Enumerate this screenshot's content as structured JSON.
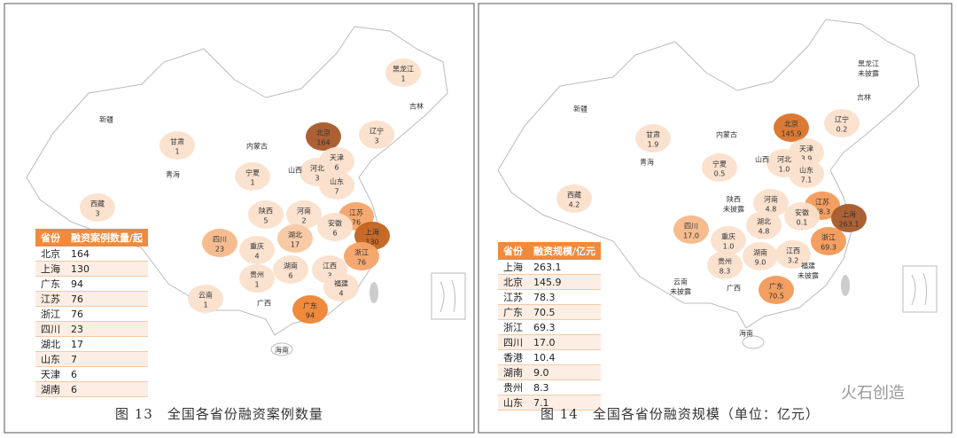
{
  "panels": [
    {
      "regions": [
        {
          "name": "黑龙江",
          "value": "1",
          "color": "#fbe0cc"
        },
        {
          "name": "吉林",
          "color": "#ffffff"
        },
        {
          "name": "辽宁",
          "value": "3",
          "color": "#fbe0cc"
        },
        {
          "name": "新疆",
          "color": "#ffffff"
        },
        {
          "name": "甘肃",
          "value": "1",
          "color": "#fbe0cc"
        },
        {
          "name": "内蒙古",
          "color": "#ffffff"
        },
        {
          "name": "北京",
          "value": "164",
          "color": "#a8582a"
        },
        {
          "name": "天津",
          "value": "6",
          "color": "#fbe0cc"
        },
        {
          "name": "河北",
          "value": "3",
          "color": "#fbe0cc"
        },
        {
          "name": "山西",
          "color": "#ffffff"
        },
        {
          "name": "宁夏",
          "value": "1",
          "color": "#fbe0cc"
        },
        {
          "name": "青海",
          "color": "#ffffff"
        },
        {
          "name": "山东",
          "value": "7",
          "color": "#fbe0cc"
        },
        {
          "name": "西藏",
          "value": "3",
          "color": "#fbe0cc"
        },
        {
          "name": "陕西",
          "value": "5",
          "color": "#fbe0cc"
        },
        {
          "name": "河南",
          "value": "2",
          "color": "#fbe0cc"
        },
        {
          "name": "江苏",
          "value": "76",
          "color": "#f4a468"
        },
        {
          "name": "安徽",
          "value": "6",
          "color": "#fbe0cc"
        },
        {
          "name": "上海",
          "value": "130",
          "color": "#c2621c"
        },
        {
          "name": "四川",
          "value": "23",
          "color": "#f6b88a"
        },
        {
          "name": "重庆",
          "value": "4",
          "color": "#fbe0cc"
        },
        {
          "name": "湖北",
          "value": "17",
          "color": "#f8c8a2"
        },
        {
          "name": "浙江",
          "value": "76",
          "color": "#f4a468"
        },
        {
          "name": "湖南",
          "value": "6",
          "color": "#fbe0cc"
        },
        {
          "name": "江西",
          "value": "3",
          "color": "#fbe0cc"
        },
        {
          "name": "贵州",
          "value": "1",
          "color": "#fbe0cc"
        },
        {
          "name": "福建",
          "value": "4",
          "color": "#fbe0cc"
        },
        {
          "name": "云南",
          "value": "1",
          "color": "#fbe0cc"
        },
        {
          "name": "广西",
          "color": "#ffffff"
        },
        {
          "name": "广东",
          "value": "94",
          "color": "#ef8432"
        },
        {
          "name": "海南",
          "color": "#ffffff"
        }
      ],
      "table": {
        "header": [
          "省份",
          "融资案例数量/起"
        ],
        "rows": [
          [
            "北京",
            "164"
          ],
          [
            "上海",
            "130"
          ],
          [
            "广东",
            "94"
          ],
          [
            "江苏",
            "76"
          ],
          [
            "浙江",
            "76"
          ],
          [
            "四川",
            "23"
          ],
          [
            "湖北",
            "17"
          ],
          [
            "山东",
            "7"
          ],
          [
            "天津",
            "6"
          ],
          [
            "湖南",
            "6"
          ]
        ]
      },
      "caption": "图 13　全国各省份融资案例数量"
    },
    {
      "regions": [
        {
          "name": "黑龙江",
          "value": "未披露",
          "color": "#ffffff"
        },
        {
          "name": "吉林",
          "color": "#ffffff"
        },
        {
          "name": "辽宁",
          "value": "0.2",
          "color": "#fbe0cc"
        },
        {
          "name": "新疆",
          "color": "#ffffff"
        },
        {
          "name": "甘肃",
          "value": "1.9",
          "color": "#fbe0cc"
        },
        {
          "name": "内蒙古",
          "color": "#ffffff"
        },
        {
          "name": "北京",
          "value": "145.9",
          "color": "#d9732a"
        },
        {
          "name": "天津",
          "value": "3.9",
          "color": "#fbe0cc"
        },
        {
          "name": "河北",
          "value": "1.0",
          "color": "#fbe0cc"
        },
        {
          "name": "山西",
          "color": "#ffffff"
        },
        {
          "name": "宁夏",
          "value": "0.5",
          "color": "#fbe0cc"
        },
        {
          "name": "青海",
          "color": "#ffffff"
        },
        {
          "name": "山东",
          "value": "7.1",
          "color": "#fbe0cc"
        },
        {
          "name": "西藏",
          "value": "4.2",
          "color": "#fbe0cc"
        },
        {
          "name": "陕西",
          "value": "未披露",
          "color": "#ffffff"
        },
        {
          "name": "河南",
          "value": "4.8",
          "color": "#fbe0cc"
        },
        {
          "name": "江苏",
          "value": "78.3",
          "color": "#f29a58"
        },
        {
          "name": "安徽",
          "value": "0.1",
          "color": "#fbe0cc"
        },
        {
          "name": "上海",
          "value": "263.1",
          "color": "#a8582a"
        },
        {
          "name": "四川",
          "value": "17.0",
          "color": "#f6b88a"
        },
        {
          "name": "重庆",
          "value": "1.0",
          "color": "#fbe0cc"
        },
        {
          "name": "湖北",
          "value": "4.8",
          "color": "#fbe0cc"
        },
        {
          "name": "浙江",
          "value": "69.3",
          "color": "#f29a58"
        },
        {
          "name": "湖南",
          "value": "9.0",
          "color": "#fbe0cc"
        },
        {
          "name": "江西",
          "value": "3.2",
          "color": "#fbe0cc"
        },
        {
          "name": "贵州",
          "value": "8.3",
          "color": "#fbe0cc"
        },
        {
          "name": "福建",
          "value": "未披露",
          "color": "#ffffff"
        },
        {
          "name": "云南",
          "value": "未披露",
          "color": "#ffffff"
        },
        {
          "name": "广西",
          "color": "#ffffff"
        },
        {
          "name": "广东",
          "value": "70.5",
          "color": "#f29a58"
        },
        {
          "name": "海南",
          "color": "#ffffff"
        }
      ],
      "table": {
        "header": [
          "省份",
          "融资规模/亿元"
        ],
        "rows": [
          [
            "上海",
            "263.1"
          ],
          [
            "北京",
            "145.9"
          ],
          [
            "江苏",
            "78.3"
          ],
          [
            "广东",
            "70.5"
          ],
          [
            "浙江",
            "69.3"
          ],
          [
            "四川",
            "17.0"
          ],
          [
            "香港",
            "10.4"
          ],
          [
            "湖南",
            "9.0"
          ],
          [
            "贵州",
            "8.3"
          ],
          [
            "山东",
            "7.1"
          ]
        ]
      },
      "caption": "图 14　全国各省份融资规模（单位：亿元）"
    }
  ],
  "watermark": "火石创造"
}
